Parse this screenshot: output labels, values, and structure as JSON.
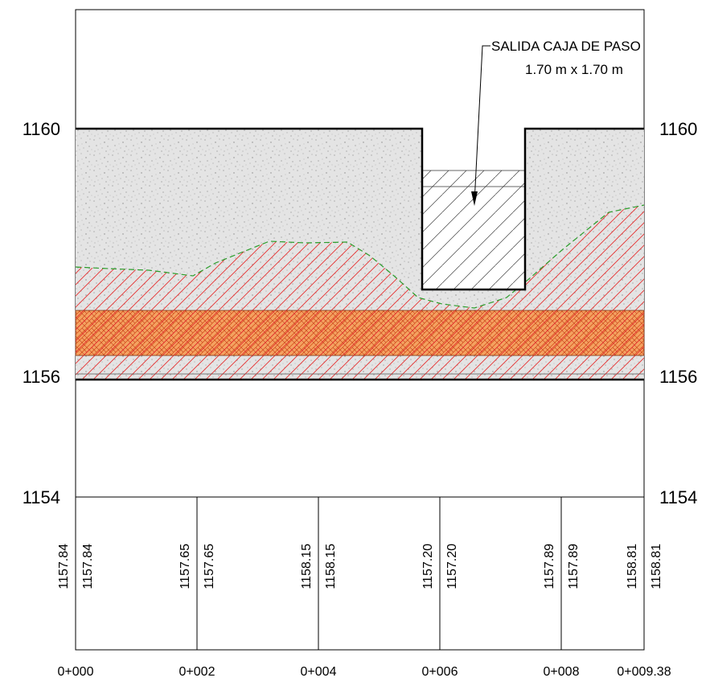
{
  "elevation_labels": [
    "1160",
    "1156",
    "1154"
  ],
  "annotation": {
    "title": "SALIDA CAJA DE PASO",
    "size": "1.70 m x 1.70 m"
  },
  "stations": [
    "0+000",
    "0+002",
    "0+004",
    "0+006",
    "0+008",
    "0+009.38"
  ],
  "ground_elevations": [
    [
      "1157.84",
      "1157.84"
    ],
    [
      "1157.65",
      "1157.65"
    ],
    [
      "1158.15",
      "1158.15"
    ],
    [
      "1157.20",
      "1157.20"
    ],
    [
      "1157.89",
      "1157.89"
    ],
    [
      "1158.81",
      "1158.81"
    ]
  ]
}
